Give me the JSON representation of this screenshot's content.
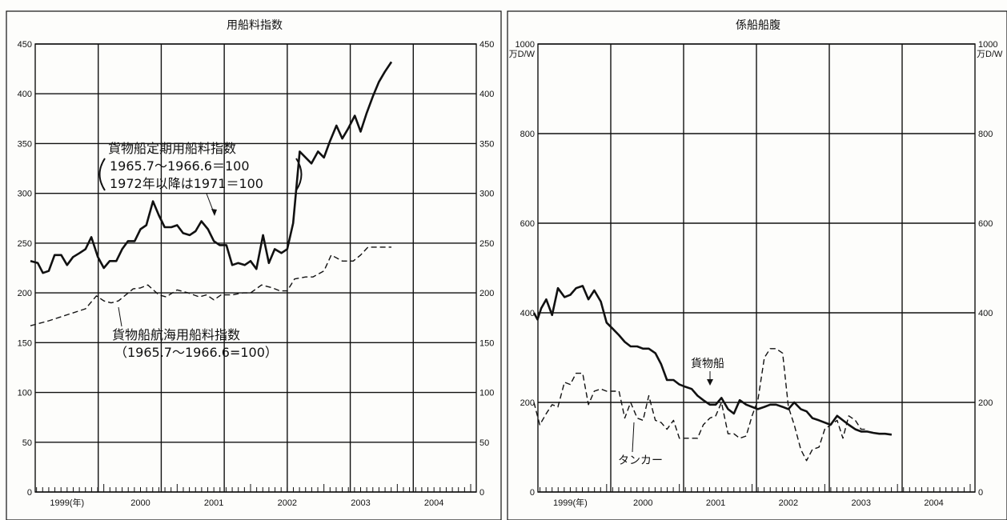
{
  "chart_data": [
    {
      "type": "line",
      "title": "用船料指数",
      "ylim": [
        0,
        450
      ],
      "yticks": [
        0,
        50,
        100,
        150,
        200,
        250,
        300,
        350,
        400,
        450
      ],
      "xlim": [
        1999,
        2005
      ],
      "xtick_labels": [
        "1999(年)",
        "2000",
        "2001",
        "2002",
        "2003",
        "2004"
      ],
      "series": [
        {
          "name": "貨物船定期用船料指数",
          "style": "solid",
          "x": [
            1999.0,
            1999.1,
            1999.17,
            1999.25,
            1999.33,
            1999.42,
            1999.5,
            1999.58,
            1999.67,
            1999.75,
            1999.83,
            1999.92,
            2000.0,
            2000.08,
            2000.17,
            2000.25,
            2000.33,
            2000.42,
            2000.5,
            2000.58,
            2000.67,
            2000.75,
            2000.83,
            2000.92,
            2001.0,
            2001.08,
            2001.17,
            2001.25,
            2001.33,
            2001.42,
            2001.5,
            2001.58,
            2001.67,
            2001.75,
            2001.83,
            2001.92,
            2002.0,
            2002.08,
            2002.17,
            2002.25,
            2002.33,
            2002.42,
            2002.5,
            2002.58,
            2002.67,
            2002.75,
            2002.83,
            2002.92,
            2003.0,
            2003.08,
            2003.17,
            2003.25,
            2003.33,
            2003.42,
            2003.5,
            2003.58,
            2003.67,
            2003.75,
            2003.83,
            2003.92
          ],
          "values": [
            232,
            230,
            220,
            222,
            238,
            238,
            228,
            236,
            240,
            244,
            256,
            236,
            225,
            232,
            232,
            244,
            252,
            252,
            264,
            268,
            292,
            278,
            266,
            266,
            268,
            260,
            258,
            262,
            272,
            264,
            252,
            248,
            248,
            228,
            230,
            228,
            232,
            224,
            258,
            230,
            244,
            240,
            244,
            270,
            342,
            336,
            330,
            342,
            336,
            352,
            368,
            355,
            365,
            378,
            362,
            380,
            398,
            412,
            422,
            432
          ]
        },
        {
          "name": "貨物船航海用船料指数",
          "style": "dashed",
          "x": [
            1999.0,
            1999.25,
            1999.5,
            1999.75,
            1999.9,
            2000.0,
            2000.1,
            2000.2,
            2000.3,
            2000.4,
            2000.5,
            2000.6,
            2000.75,
            2000.85,
            2001.0,
            2001.15,
            2001.3,
            2001.4,
            2001.5,
            2001.6,
            2001.75,
            2001.9,
            2002.0,
            2002.15,
            2002.3,
            2002.4,
            2002.5,
            2002.6,
            2002.75,
            2002.85,
            2003.0,
            2003.1,
            2003.25,
            2003.4,
            2003.5,
            2003.6,
            2003.75,
            2003.92
          ],
          "values": [
            167,
            172,
            178,
            184,
            197,
            192,
            190,
            192,
            198,
            204,
            205,
            208,
            198,
            196,
            203,
            200,
            196,
            198,
            193,
            198,
            198,
            200,
            200,
            208,
            205,
            202,
            202,
            214,
            216,
            216,
            222,
            238,
            232,
            232,
            238,
            246,
            246,
            246
          ]
        }
      ],
      "annotations": [
        {
          "lines": [
            "貨物船定期用船料指数",
            "1965.7～1966.6＝100",
            "1972年以降は1971＝100"
          ]
        },
        {
          "lines": [
            "貨物船航海用船料指数",
            "（1965.7～1966.6=100）"
          ]
        }
      ]
    },
    {
      "type": "line",
      "title": "係船船腹",
      "unit_label": "万D/W",
      "ylim": [
        0,
        1000
      ],
      "yticks": [
        0,
        200,
        400,
        600,
        800,
        1000
      ],
      "xlim": [
        1999,
        2005
      ],
      "xtick_labels": [
        "1999(年)",
        "2000",
        "2001",
        "2002",
        "2003",
        "2004"
      ],
      "series": [
        {
          "name": "貨物船",
          "style": "solid",
          "x": [
            1999.0,
            1999.05,
            1999.1,
            1999.17,
            1999.25,
            1999.33,
            1999.42,
            1999.5,
            1999.58,
            1999.67,
            1999.75,
            1999.83,
            1999.92,
            2000.0,
            2000.08,
            2000.17,
            2000.25,
            2000.33,
            2000.42,
            2000.5,
            2000.58,
            2000.67,
            2000.75,
            2000.83,
            2000.92,
            2001.0,
            2001.08,
            2001.17,
            2001.25,
            2001.33,
            2001.42,
            2001.5,
            2001.58,
            2001.67,
            2001.75,
            2001.83,
            2001.92,
            2002.0,
            2002.08,
            2002.17,
            2002.25,
            2002.33,
            2002.42,
            2002.5,
            2002.58,
            2002.67,
            2002.75,
            2002.83,
            2002.92,
            2003.0,
            2003.08,
            2003.17,
            2003.25,
            2003.33,
            2003.42,
            2003.5,
            2003.58,
            2003.67,
            2003.75,
            2003.83,
            2003.92
          ],
          "values": [
            400,
            385,
            410,
            430,
            395,
            455,
            435,
            440,
            455,
            460,
            430,
            450,
            425,
            378,
            365,
            350,
            335,
            325,
            325,
            320,
            320,
            310,
            285,
            250,
            250,
            240,
            235,
            230,
            215,
            205,
            195,
            195,
            210,
            185,
            175,
            205,
            195,
            190,
            185,
            190,
            195,
            195,
            190,
            185,
            200,
            185,
            180,
            165,
            160,
            155,
            150,
            170,
            160,
            150,
            140,
            135,
            135,
            132,
            130,
            130,
            128
          ]
        },
        {
          "name": "タンカー",
          "style": "dashed",
          "x": [
            1999.0,
            1999.08,
            1999.17,
            1999.25,
            1999.33,
            1999.42,
            1999.5,
            1999.58,
            1999.67,
            1999.75,
            1999.83,
            1999.92,
            2000.0,
            2000.08,
            2000.17,
            2000.25,
            2000.33,
            2000.42,
            2000.5,
            2000.58,
            2000.67,
            2000.75,
            2000.83,
            2000.92,
            2001.0,
            2001.08,
            2001.17,
            2001.25,
            2001.33,
            2001.42,
            2001.5,
            2001.58,
            2001.67,
            2001.75,
            2001.83,
            2001.92,
            2002.0,
            2002.08,
            2002.17,
            2002.25,
            2002.33,
            2002.42,
            2002.5,
            2002.58,
            2002.67,
            2002.75,
            2002.83,
            2002.92,
            2003.0,
            2003.08,
            2003.17,
            2003.25,
            2003.33,
            2003.42,
            2003.5,
            2003.58
          ],
          "values": [
            200,
            150,
            175,
            195,
            190,
            245,
            240,
            265,
            265,
            195,
            225,
            230,
            225,
            225,
            225,
            165,
            200,
            165,
            160,
            215,
            160,
            155,
            140,
            160,
            120,
            120,
            120,
            120,
            150,
            165,
            170,
            200,
            130,
            130,
            120,
            125,
            170,
            205,
            300,
            320,
            320,
            310,
            190,
            150,
            95,
            70,
            95,
            100,
            140,
            150,
            160,
            120,
            170,
            160,
            140,
            140
          ]
        }
      ],
      "labels": [
        "貨物船",
        "タンカー"
      ]
    }
  ]
}
